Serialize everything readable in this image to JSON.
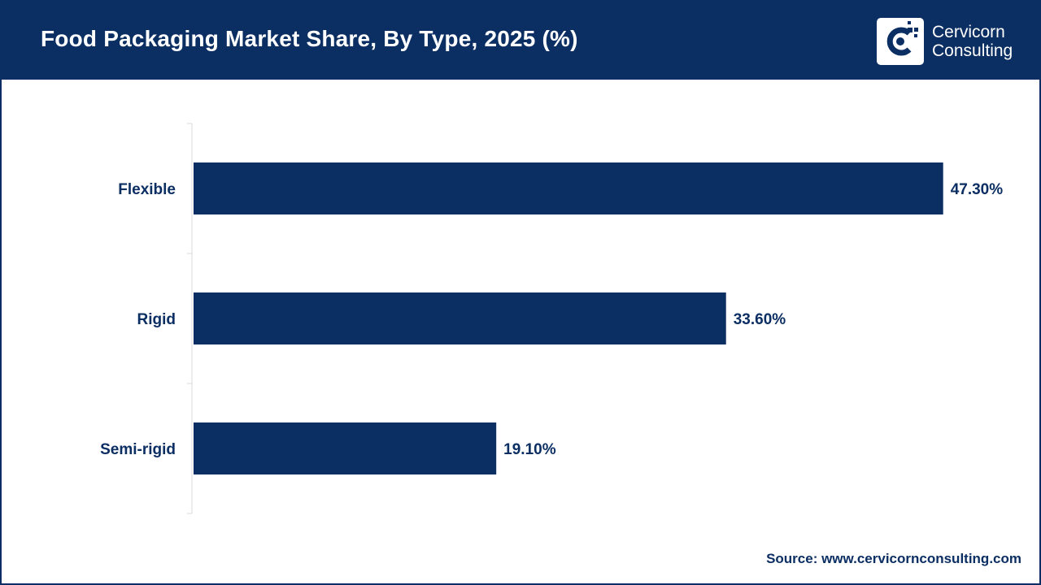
{
  "header": {
    "title": "Food Packaging Market Share, By Type, 2025 (%)",
    "background_color": "#0b2e63"
  },
  "logo": {
    "line1": "Cervicorn",
    "line2": "Consulting",
    "icon": "cervicorn-logo-icon"
  },
  "chart_data": {
    "type": "bar",
    "orientation": "horizontal",
    "categories": [
      "Flexible",
      "Rigid",
      "Semi-rigid"
    ],
    "values": [
      47.3,
      33.6,
      19.1
    ],
    "data_labels": [
      "47.30%",
      "33.60%",
      "19.10%"
    ],
    "unit": "%",
    "xlim": [
      0,
      50
    ],
    "grid": false,
    "legend": "none",
    "bar_color": "#0b2e63",
    "title": "Food Packaging Market Share, By Type, 2025 (%)",
    "xlabel": "",
    "ylabel": ""
  },
  "footer": {
    "source": "Source: www.cervicornconsulting.com"
  }
}
